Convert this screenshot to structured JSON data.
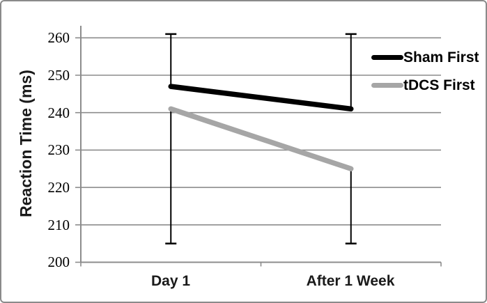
{
  "figure": {
    "background_color": "#ffffff",
    "border_color": "#8a8a8a"
  },
  "chart_data": {
    "type": "line",
    "title": "",
    "ylabel": "Reaction Time (ms)",
    "xlabel": "",
    "categories": [
      "Day 1",
      "After 1 Week"
    ],
    "ylim": [
      200,
      260
    ],
    "yticks": [
      260,
      250,
      240,
      230,
      220,
      210,
      200
    ],
    "grid": true,
    "gridline_color": "#8c8c8c",
    "axis_color": "#8c8c8c",
    "error_bar_color": "#000000",
    "legend_position": "right",
    "series": [
      {
        "name": "Sham First",
        "color": "#000000",
        "values": [
          247,
          241
        ],
        "error_direction": "up",
        "error_to": [
          261,
          261
        ]
      },
      {
        "name": "tDCS First",
        "color": "#a6a6a6",
        "values": [
          241,
          225
        ],
        "error_direction": "down",
        "error_to": [
          205,
          205
        ]
      }
    ]
  }
}
